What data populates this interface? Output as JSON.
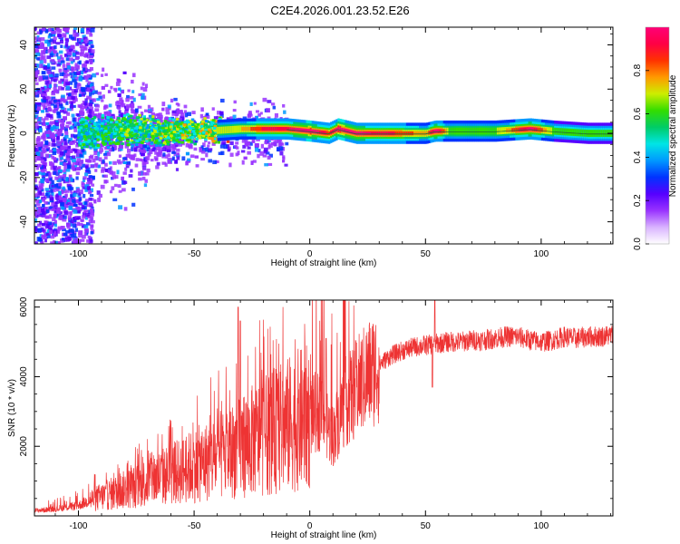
{
  "title": "C2E4.2026.001.23.52.E26",
  "chart_data": [
    {
      "type": "heatmap",
      "name": "spectrogram",
      "xlabel": "Height of straight line (km)",
      "ylabel": "Frequency (Hz)",
      "xlim": [
        -119,
        131
      ],
      "ylim": [
        -50,
        48
      ],
      "xticks": [
        -100,
        -50,
        0,
        50,
        100
      ],
      "yticks": [
        -40,
        -20,
        0,
        20,
        40
      ],
      "colorbar": {
        "label": "Normalized spectral amplitude",
        "range": [
          0,
          1
        ],
        "ticks": [
          "0.0",
          "0.2",
          "0.4",
          "0.6",
          "0.8"
        ],
        "colors": [
          "#ffffff",
          "#d9b3ff",
          "#9933ff",
          "#5500ff",
          "#0033ff",
          "#0099ff",
          "#00e5e5",
          "#00cc66",
          "#33dd00",
          "#ccee00",
          "#ff9900",
          "#ff3300",
          "#ff0044",
          "#ff0077"
        ]
      },
      "ridge": {
        "description": "narrow band around 0-2 Hz",
        "x": [
          -119,
          -100,
          -80,
          -60,
          -45,
          -30,
          -20,
          -10,
          0,
          8,
          12,
          20,
          35,
          50,
          54,
          60,
          80,
          95,
          105,
          120,
          131
        ],
        "center_hz": [
          0,
          0,
          1,
          1,
          1,
          2,
          2,
          2,
          1,
          0,
          2,
          0,
          0,
          0,
          1,
          1,
          1,
          2,
          1,
          0,
          0
        ],
        "peak_amplitude": [
          0.1,
          0.35,
          0.45,
          0.5,
          0.55,
          0.6,
          0.75,
          0.8,
          0.9,
          0.7,
          0.9,
          0.85,
          0.75,
          0.6,
          0.9,
          0.5,
          0.5,
          0.85,
          0.5,
          0.45,
          0.45
        ]
      }
    },
    {
      "type": "line",
      "name": "snr",
      "xlabel": "Height of straight line (km)",
      "ylabel": "SNR (10 * v/v)",
      "xlim": [
        -119,
        131
      ],
      "ylim": [
        0,
        6200
      ],
      "xticks": [
        -100,
        -50,
        0,
        50,
        100
      ],
      "yticks": [
        2000,
        4000,
        6000
      ],
      "color": "#ee3333",
      "series": [
        {
          "name": "SNR",
          "x": [
            -119,
            -110,
            -100,
            -95,
            -90,
            -85,
            -80,
            -75,
            -70,
            -65,
            -60,
            -55,
            -50,
            -45,
            -40,
            -35,
            -30,
            -25,
            -20,
            -15,
            -10,
            -5,
            0,
            3,
            6,
            8,
            10,
            12,
            15,
            18,
            20,
            25,
            30,
            35,
            40,
            45,
            50,
            55,
            60,
            65,
            70,
            75,
            80,
            85,
            90,
            95,
            100,
            105,
            110,
            115,
            120,
            125,
            131
          ],
          "values": [
            150,
            200,
            300,
            450,
            550,
            650,
            750,
            850,
            1000,
            1100,
            1200,
            1300,
            1450,
            1550,
            1700,
            1800,
            2000,
            2150,
            2300,
            2450,
            2600,
            2750,
            2850,
            3000,
            3050,
            2500,
            2300,
            2700,
            3250,
            3450,
            3650,
            4050,
            4350,
            4600,
            4750,
            4850,
            4900,
            4950,
            5000,
            5000,
            5050,
            5050,
            5100,
            5150,
            5150,
            5050,
            5000,
            5050,
            5150,
            5100,
            5150,
            5150,
            5200
          ],
          "spikes": [
            {
              "x": -31,
              "value": 6000
            },
            {
              "x": -30,
              "value": 5600
            },
            {
              "x": 7,
              "value": 5100
            },
            {
              "x": 54,
              "value": 6200
            },
            {
              "x": 53,
              "value": 3700
            }
          ]
        }
      ]
    }
  ]
}
